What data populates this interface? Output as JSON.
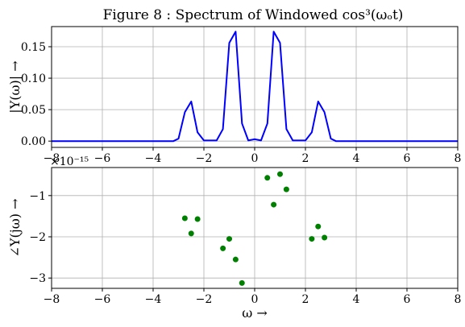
{
  "figure": {
    "title": "Figure 8 : Spectrum of Windowed cos³(ωₒt)"
  },
  "chart_data": [
    {
      "type": "line",
      "ylabel": "|Y(ω)| →",
      "xlabel": "",
      "xlim": [
        -8,
        8
      ],
      "ylim": [
        -0.01,
        0.182
      ],
      "xticks": [
        -8,
        -6,
        -4,
        -2,
        0,
        2,
        4,
        6,
        8
      ],
      "xtick_labels": [
        "−8",
        "−6",
        "−4",
        "−2",
        "0",
        "2",
        "4",
        "6",
        "8"
      ],
      "yticks": [
        0.0,
        0.05,
        0.1,
        0.15
      ],
      "ytick_labels": [
        "0.00",
        "0.05",
        "0.10",
        "0.15"
      ],
      "grid": true,
      "color": "#0000ff",
      "series": [
        {
          "x": [
            -8,
            -3.6,
            -3.2,
            -3.0,
            -2.75,
            -2.5,
            -2.25,
            -2.0,
            -1.75,
            -1.5,
            -1.25,
            -1.0,
            -0.75,
            -0.5,
            -0.25,
            0.0,
            0.25,
            0.5,
            0.75,
            1.0,
            1.25,
            1.5,
            1.75,
            2.0,
            2.25,
            2.5,
            2.75,
            3.0,
            3.2,
            3.6,
            8
          ],
          "y": [
            0.0,
            0.0,
            0.0,
            0.004,
            0.046,
            0.063,
            0.014,
            0.001,
            0.001,
            0.001,
            0.019,
            0.156,
            0.174,
            0.028,
            0.001,
            0.003,
            0.001,
            0.028,
            0.174,
            0.156,
            0.019,
            0.001,
            0.001,
            0.001,
            0.014,
            0.063,
            0.046,
            0.004,
            0.0,
            0.0,
            0.0
          ]
        }
      ]
    },
    {
      "type": "scatter",
      "ylabel": "∠Y(jω) →",
      "xlabel": "ω →",
      "offset_text": "×10⁻¹⁵",
      "xlim": [
        -8,
        8
      ],
      "ylim": [
        -3.25,
        -0.32
      ],
      "xticks": [
        -8,
        -6,
        -4,
        -2,
        0,
        2,
        4,
        6,
        8
      ],
      "xtick_labels": [
        "−8",
        "−6",
        "−4",
        "−2",
        "0",
        "2",
        "4",
        "6",
        "8"
      ],
      "yticks": [
        -1,
        -2,
        -3
      ],
      "ytick_labels": [
        "−1",
        "−2",
        "−3"
      ],
      "grid": true,
      "color": "#008000",
      "series": [
        {
          "x": [
            -2.75,
            -2.5,
            -2.25,
            -1.25,
            -1.0,
            -0.75,
            -0.5,
            0.5,
            0.75,
            1.0,
            1.25,
            2.25,
            2.5,
            2.75
          ],
          "y": [
            -1.55,
            -1.92,
            -1.57,
            -2.28,
            -2.05,
            -2.55,
            -3.12,
            -0.57,
            -1.22,
            -0.48,
            -0.85,
            -2.05,
            -1.75,
            -2.02
          ]
        }
      ]
    }
  ]
}
